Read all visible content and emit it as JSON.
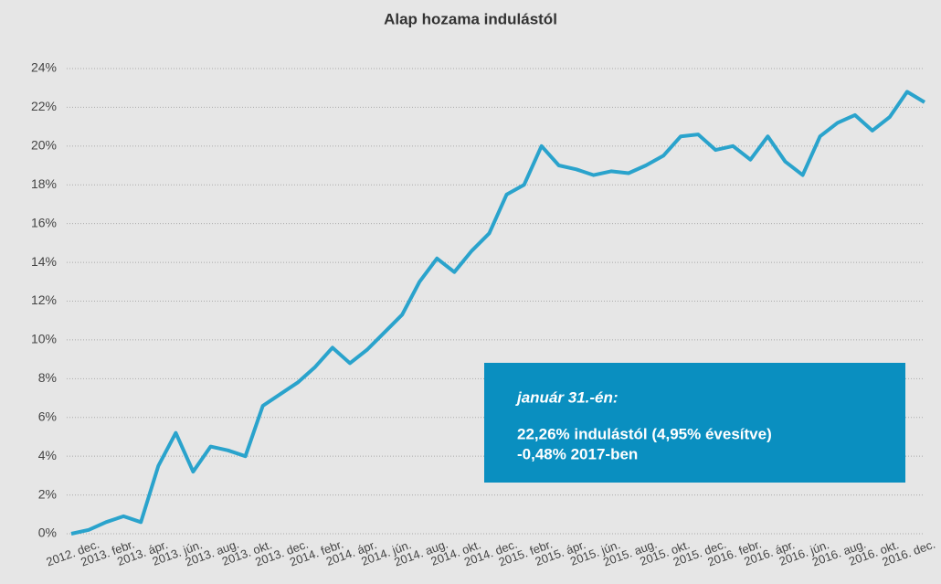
{
  "chart_data": {
    "type": "line",
    "title": "Alap hozama indulástól",
    "categories": [
      "2012. dec.",
      null,
      "2013. febr.",
      null,
      "2013. ápr.",
      null,
      "2013. jún.",
      null,
      "2013. aug.",
      null,
      "2013. okt.",
      null,
      "2013. dec.",
      null,
      "2014. febr.",
      null,
      "2014. ápr.",
      null,
      "2014. jún.",
      null,
      "2014. aug.",
      null,
      "2014. okt.",
      null,
      "2014. dec.",
      null,
      "2015. febr.",
      null,
      "2015. ápr.",
      null,
      "2015. jún.",
      null,
      "2015. aug.",
      null,
      "2015. okt.",
      null,
      "2015. dec.",
      null,
      "2016. febr.",
      null,
      "2016. ápr.",
      null,
      "2016. jún.",
      null,
      "2016. aug.",
      null,
      "2016. okt.",
      null,
      "2016. dec.",
      null
    ],
    "series": [
      {
        "name": "Alap hozama",
        "color": "#2aa3cc",
        "values": [
          0,
          0.2,
          0.6,
          0.9,
          0.6,
          3.5,
          5.2,
          3.2,
          4.5,
          4.3,
          4.0,
          6.6,
          7.2,
          7.8,
          8.6,
          9.6,
          8.8,
          9.5,
          10.4,
          11.3,
          13.0,
          14.2,
          13.5,
          14.6,
          15.5,
          17.5,
          18.0,
          20.0,
          19.0,
          18.8,
          18.5,
          18.7,
          18.6,
          19.0,
          19.5,
          20.5,
          20.6,
          19.8,
          20.0,
          19.3,
          20.5,
          19.2,
          18.5,
          20.5,
          21.2,
          21.6,
          20.8,
          21.5,
          22.8,
          22.26
        ]
      }
    ],
    "ylim": [
      0,
      24
    ],
    "yticks": [
      {
        "value": 0,
        "label": "0%"
      },
      {
        "value": 2,
        "label": "2%"
      },
      {
        "value": 4,
        "label": "4%"
      },
      {
        "value": 6,
        "label": "6%"
      },
      {
        "value": 8,
        "label": "8%"
      },
      {
        "value": 10,
        "label": "10%"
      },
      {
        "value": 12,
        "label": "12%"
      },
      {
        "value": 14,
        "label": "14%"
      },
      {
        "value": 16,
        "label": "16%"
      },
      {
        "value": 18,
        "label": "18%"
      },
      {
        "value": 20,
        "label": "20%"
      },
      {
        "value": 22,
        "label": "22%"
      },
      {
        "value": 24,
        "label": "24%"
      }
    ],
    "grid": true,
    "annotation": {
      "heading": "január 31.-én:",
      "lines": [
        "22,26% indulástól  (4,95% évesítve)",
        "-0,48% 2017-ben"
      ]
    }
  }
}
